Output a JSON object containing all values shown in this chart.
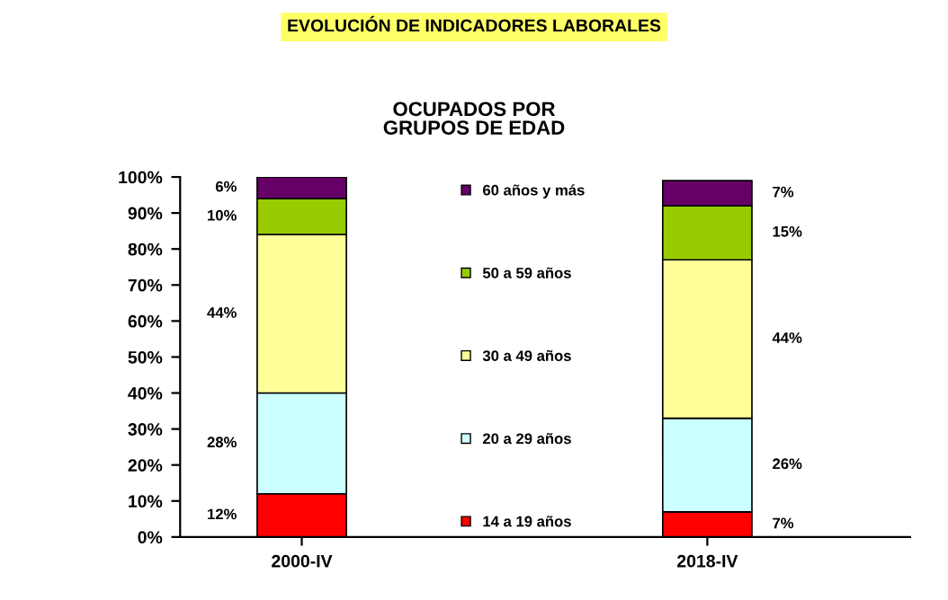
{
  "chart_data": {
    "type": "bar",
    "stacked": true,
    "title": "EVOLUCIÓN DE INDICADORES LABORALES",
    "subtitle": "OCUPADOS POR\nGRUPOS DE EDAD",
    "categories": [
      "2000-IV",
      "2018-IV"
    ],
    "series": [
      {
        "name": "14 a 19 años",
        "color": "#ff0000",
        "values": [
          12,
          7
        ]
      },
      {
        "name": "20 a 29 años",
        "color": "#ccffff",
        "values": [
          28,
          26
        ]
      },
      {
        "name": "30 a 49 años",
        "color": "#ffff99",
        "values": [
          44,
          44
        ]
      },
      {
        "name": "50 a 59 años",
        "color": "#99cc00",
        "values": [
          10,
          15
        ]
      },
      {
        "name": "60 años y más",
        "color": "#660066",
        "values": [
          6,
          7
        ]
      }
    ],
    "ylim": [
      0,
      100
    ],
    "yticks": [
      {
        "value": 0,
        "label": "0%"
      },
      {
        "value": 10,
        "label": "10%"
      },
      {
        "value": 20,
        "label": "20%"
      },
      {
        "value": 30,
        "label": "30%"
      },
      {
        "value": 40,
        "label": "40%"
      },
      {
        "value": 50,
        "label": "50%"
      },
      {
        "value": 60,
        "label": "60%"
      },
      {
        "value": 70,
        "label": "70%"
      },
      {
        "value": 80,
        "label": "80%"
      },
      {
        "value": 90,
        "label": "90%"
      },
      {
        "value": 100,
        "label": "100%"
      }
    ],
    "value_labels": [
      [
        "12%",
        "28%",
        "44%",
        "10%",
        "6%"
      ],
      [
        "7%",
        "26%",
        "44%",
        "15%",
        "7%"
      ]
    ],
    "legend": "center",
    "grid": false
  }
}
